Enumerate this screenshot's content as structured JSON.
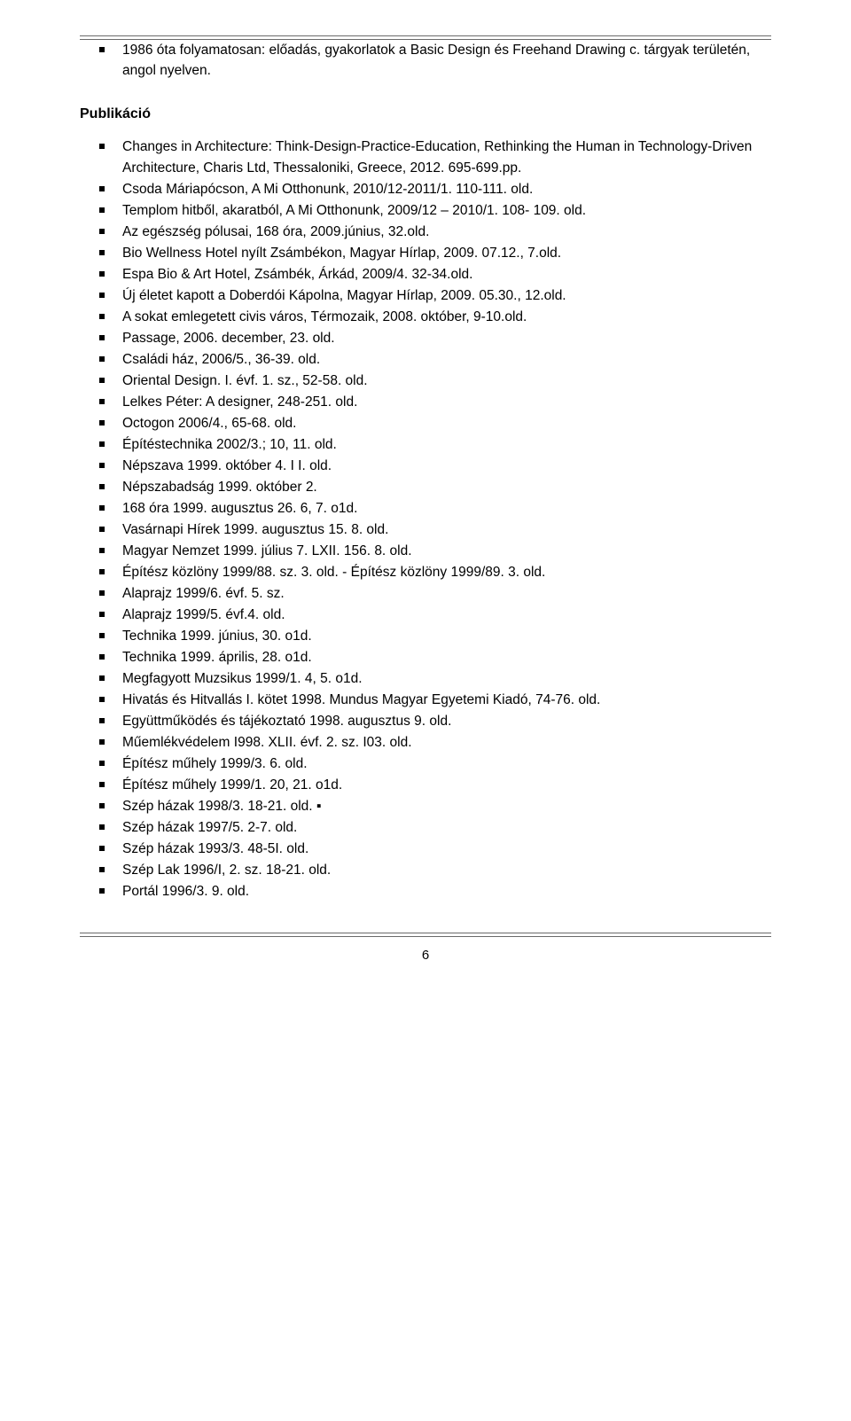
{
  "intro": "1986 óta folyamatosan: előadás, gyakorlatok a Basic Design és Freehand Drawing c. tárgyak területén, angol nyelven.",
  "section_title": "Publikáció",
  "items": [
    "Changes in Architecture: Think-Design-Practice-Education, Rethinking the Human in Technology-Driven Architecture, Charis Ltd, Thessaloniki, Greece, 2012. 695-699.pp.",
    "Csoda Máriapócson, A Mi Otthonunk, 2010/12-2011/1. 110-111. old.",
    "Templom hitből, akaratból, A Mi Otthonunk, 2009/12 – 2010/1. 108- 109. old.",
    "Az egészség pólusai, 168 óra, 2009.június, 32.old.",
    "Bio Wellness Hotel nyílt Zsámbékon, Magyar Hírlap, 2009. 07.12., 7.old.",
    "Espa Bio & Art Hotel, Zsámbék, Árkád, 2009/4. 32-34.old.",
    "Új életet kapott a Doberdói Kápolna, Magyar Hírlap, 2009. 05.30., 12.old.",
    "A sokat emlegetett civis város, Térmozaik, 2008. október, 9-10.old.",
    "Passage, 2006. december, 23. old.",
    "Családi ház, 2006/5., 36-39. old.",
    "Oriental Design. I. évf. 1. sz., 52-58. old.",
    "Lelkes Péter: A designer, 248-251. old.",
    "Octogon 2006/4., 65-68. old.",
    "Építéstechnika 2002/3.; 10, 11. old.",
    "Népszava 1999. október 4. I I. old.",
    "Népszabadság 1999. október 2.",
    "168 óra 1999. augusztus 26. 6, 7. o1d.",
    "Vasárnapi Hírek 1999. augusztus 15. 8. old.",
    "Magyar Nemzet 1999. július 7. LXII. 156. 8. old.",
    "Építész közlöny 1999/88. sz. 3. old. - Építész közlöny 1999/89. 3. old.",
    "Alaprajz 1999/6. évf. 5. sz.",
    "Alaprajz 1999/5. évf.4. old.",
    "Technika 1999. június, 30. o1d.",
    "Technika 1999. április, 28. o1d.",
    "Megfagyott Muzsikus 1999/1. 4, 5. o1d.",
    "Hivatás és Hitvallás I. kötet 1998. Mundus Magyar Egyetemi Kiadó, 74-76. old.",
    "Együttműködés és tájékoztató 1998. augusztus 9. old.",
    "Műemlékvédelem I998. XLII. évf. 2. sz. I03. old.",
    "Építész műhely 1999/3. 6. old.",
    "Építész műhely 1999/1. 20, 21. o1d.",
    "Szép házak 1998/3. 18-21. old. ▪",
    "Szép házak 1997/5. 2-7. old.",
    "Szép házak 1993/3. 48-5I. old.",
    "Szép Lak 1996/I, 2. sz. 18-21. old.",
    "Portál 1996/3. 9. old."
  ],
  "page_number": "6"
}
